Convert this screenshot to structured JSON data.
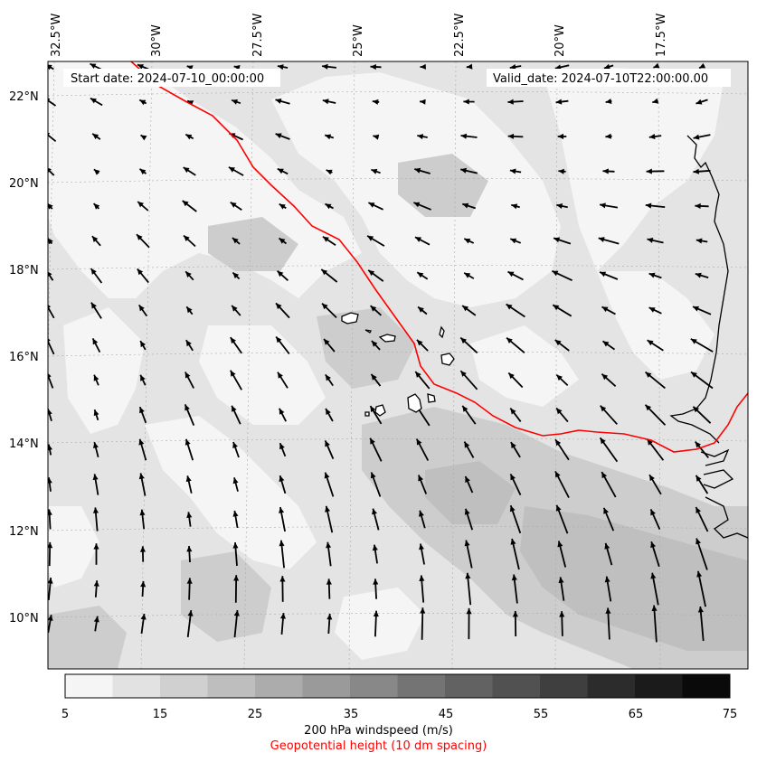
{
  "header": {
    "start_date": "Start date: 2024-07-10_00:00:00",
    "valid_date": "Valid_date: 2024-07-10T22:00:00.00"
  },
  "map": {
    "lon_labels": [
      "32.5°W",
      "30°W",
      "27.5°W",
      "25°W",
      "22.5°W",
      "20°W",
      "17.5°W"
    ],
    "lat_labels": [
      "22°N",
      "20°N",
      "18°N",
      "16°N",
      "14°N",
      "12°N",
      "10°N"
    ],
    "geopotential_contour_color": "#ff0000",
    "coastline_color": "#000000"
  },
  "colorbar": {
    "ticks": [
      "5",
      "15",
      "25",
      "35",
      "45",
      "55",
      "65",
      "75"
    ],
    "levels": [
      5,
      10,
      15,
      20,
      25,
      30,
      35,
      40,
      45,
      50,
      55,
      60,
      65,
      70,
      75
    ],
    "colors": [
      "#f5f5f5",
      "#e2e2e2",
      "#d0d0d0",
      "#bebebe",
      "#acacac",
      "#9a9a9a",
      "#888888",
      "#747474",
      "#626262",
      "#515151",
      "#3f3f3f",
      "#2c2c2c",
      "#1b1b1b",
      "#0a0a0a"
    ],
    "label": "200 hPa windspeed (m/s)",
    "sublabel": "Geopotential height (10 dm spacing)",
    "sublabel_color": "#ff0000"
  }
}
